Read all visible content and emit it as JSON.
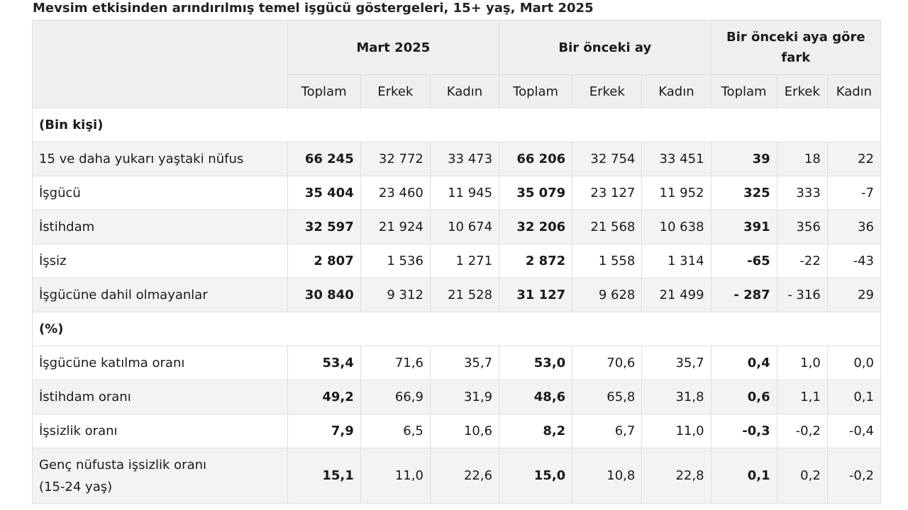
{
  "title": "Mevsim etkisinden arındırılmış temel işgücü göstergeleri, 15+ yaş, Mart 2025",
  "groups": [
    "Mart 2025",
    "Bir önceki ay",
    "Bir önceki aya göre fark"
  ],
  "subheaders": [
    "Toplam",
    "Erkek",
    "Kadın",
    "Toplam",
    "Erkek",
    "Kadın",
    "Toplam",
    "Erkek",
    "Kadın"
  ],
  "sections": [
    {
      "label": "(Bin kişi)",
      "rows": [
        {
          "label": "15 ve daha yukarı yaştaki nüfus",
          "values": [
            "66 245",
            "32 772",
            "33 473",
            "66 206",
            "32 754",
            "33 451",
            "39",
            "18",
            "22"
          ]
        },
        {
          "label": "İşgücü",
          "values": [
            "35 404",
            "23 460",
            "11 945",
            "35 079",
            "23 127",
            "11 952",
            "325",
            "333",
            "-7"
          ]
        },
        {
          "label": "İstihdam",
          "values": [
            "32 597",
            "21 924",
            "10 674",
            "32 206",
            "21 568",
            "10 638",
            "391",
            "356",
            "36"
          ]
        },
        {
          "label": "İşsiz",
          "values": [
            "2 807",
            "1 536",
            "1 271",
            "2 872",
            "1 558",
            "1 314",
            "-65",
            "-22",
            "-43"
          ]
        },
        {
          "label": "İşgücüne dahil olmayanlar",
          "values": [
            "30 840",
            "9 312",
            "21 528",
            "31 127",
            "9 628",
            "21 499",
            "- 287",
            "- 316",
            "29"
          ]
        }
      ]
    },
    {
      "label": "(%)",
      "rows": [
        {
          "label": "İşgücüne katılma oranı",
          "values": [
            "53,4",
            "71,6",
            "35,7",
            "53,0",
            "70,6",
            "35,7",
            "0,4",
            "1,0",
            "0,0"
          ]
        },
        {
          "label": "İstihdam oranı",
          "values": [
            "49,2",
            "66,9",
            "31,9",
            "48,6",
            "65,8",
            "31,8",
            "0,6",
            "1,1",
            "0,1"
          ]
        },
        {
          "label": "İşsizlik oranı",
          "values": [
            "7,9",
            "6,5",
            "10,6",
            "8,2",
            "6,7",
            "11,0",
            "-0,3",
            "-0,2",
            "-0,4"
          ]
        },
        {
          "label": "Genç nüfusta işsizlik oranı",
          "label_line2": "(15-24 yaş)",
          "values": [
            "15,1",
            "11,0",
            "22,6",
            "15,0",
            "10,8",
            "22,8",
            "0,1",
            "0,2",
            "-0,2"
          ]
        }
      ]
    }
  ]
}
